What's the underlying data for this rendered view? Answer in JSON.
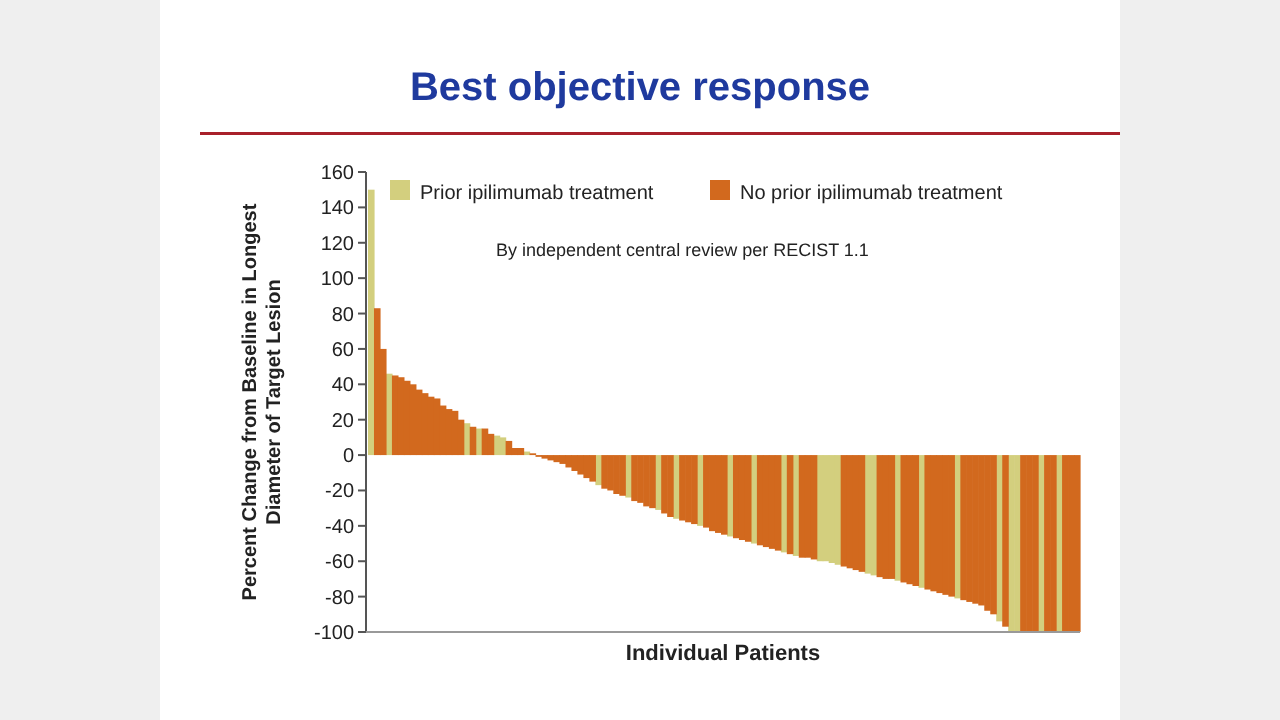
{
  "chart_data": {
    "type": "bar",
    "title": "Best objective response",
    "stacked": true,
    "xlabel": "Individual Patients",
    "ylabel": "Percent Change from Baseline in Longest Diameter of Target Lesion",
    "annotations": [
      "By independent central review per RECIST 1.1"
    ],
    "legend": "top left",
    "grid": false,
    "ylim": [
      -100,
      160
    ],
    "yticks": [
      -100,
      -80,
      -60,
      -40,
      -20,
      0,
      20,
      40,
      60,
      80,
      100,
      120,
      140,
      160
    ],
    "categories": [
      null,
      null,
      null,
      null,
      null,
      null,
      null,
      null,
      null,
      null,
      null,
      null,
      null,
      null,
      null,
      null,
      null,
      null,
      null,
      null,
      null,
      null,
      null,
      null,
      null,
      null,
      null,
      null,
      null,
      null,
      null,
      null,
      null,
      null,
      null,
      null,
      null,
      null,
      null,
      null,
      null,
      null,
      null,
      null,
      null,
      null,
      null,
      null,
      null,
      null,
      null,
      null,
      null,
      null,
      null,
      null,
      null,
      null,
      null,
      null,
      null,
      null,
      null,
      null,
      null,
      null,
      null,
      null,
      null,
      null,
      null,
      null,
      null,
      null,
      null,
      null,
      null,
      null,
      null,
      null,
      null,
      null,
      null,
      null,
      null,
      null,
      null,
      null,
      null,
      null,
      null,
      null,
      null,
      null,
      null,
      null,
      null,
      null,
      null,
      null,
      null,
      null,
      null,
      null,
      null,
      null,
      null,
      null,
      null,
      null,
      null,
      null,
      null,
      null,
      null,
      null,
      null,
      null,
      null
    ],
    "series": [
      {
        "name": "Prior ipilimumab treatment",
        "color": "#d3cf7e",
        "values": [
          150,
          null,
          null,
          46,
          null,
          null,
          null,
          null,
          null,
          null,
          null,
          null,
          null,
          null,
          null,
          null,
          18,
          null,
          15,
          null,
          null,
          11,
          10,
          null,
          null,
          null,
          2,
          null,
          null,
          null,
          null,
          null,
          null,
          null,
          null,
          null,
          null,
          null,
          -17,
          null,
          null,
          null,
          null,
          -24,
          null,
          null,
          null,
          null,
          -31,
          null,
          null,
          -36,
          null,
          null,
          null,
          -40,
          null,
          null,
          null,
          null,
          -46,
          null,
          null,
          null,
          -50,
          null,
          null,
          null,
          null,
          -55,
          null,
          -57,
          null,
          null,
          null,
          -60,
          -60,
          -61,
          -62,
          null,
          null,
          null,
          null,
          -67,
          -68,
          null,
          null,
          null,
          -71,
          null,
          null,
          null,
          -75,
          null,
          null,
          null,
          null,
          null,
          -81,
          null,
          null,
          null,
          null,
          null,
          null,
          -94,
          null,
          -100,
          -100,
          null,
          null,
          null,
          -100,
          null,
          null,
          -100,
          null,
          null,
          null
        ]
      },
      {
        "name": "No prior ipilimumab treatment",
        "color": "#d2691e",
        "values": [
          null,
          83,
          60,
          null,
          45,
          44,
          42,
          40,
          37,
          35,
          33,
          32,
          28,
          26,
          25,
          20,
          null,
          16,
          null,
          15,
          12,
          null,
          null,
          8,
          4,
          4,
          null,
          1,
          -1,
          -2,
          -3,
          -4,
          -5,
          -7,
          -9,
          -11,
          -13,
          -15,
          null,
          -19,
          -20,
          -22,
          -23,
          null,
          -26,
          -27,
          -29,
          -30,
          null,
          -33,
          -35,
          null,
          -37,
          -38,
          -39,
          null,
          -41,
          -43,
          -44,
          -45,
          null,
          -47,
          -48,
          -49,
          null,
          -51,
          -52,
          -53,
          -54,
          null,
          -56,
          null,
          -58,
          -58,
          -59,
          null,
          null,
          null,
          null,
          -63,
          -64,
          -65,
          -66,
          null,
          null,
          -69,
          -70,
          -70,
          null,
          -72,
          -73,
          -74,
          null,
          -76,
          -77,
          -78,
          -79,
          -80,
          null,
          -82,
          -83,
          -84,
          -85,
          -88,
          -90,
          null,
          -97,
          null,
          null,
          -100,
          -100,
          -100,
          null,
          -100,
          -100,
          null,
          -100,
          -100,
          -100
        ]
      }
    ]
  }
}
